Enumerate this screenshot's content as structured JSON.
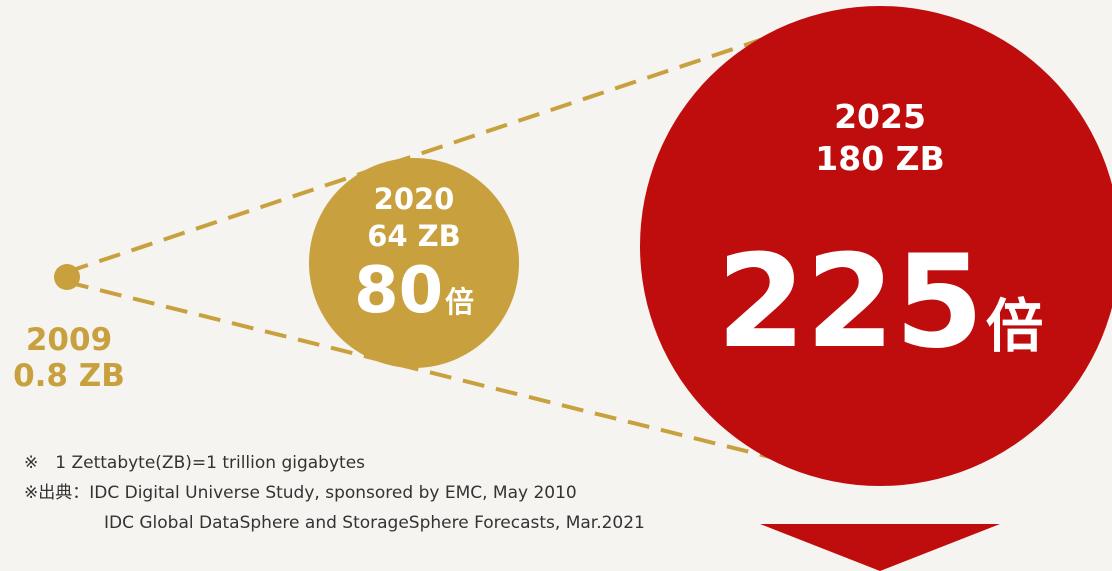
{
  "diagram": {
    "p2009": {
      "year": "2009",
      "size": "0.8 ZB",
      "color": "#c9a03e"
    },
    "p2020": {
      "year": "2020",
      "size": "64 ZB",
      "multiplier": "80",
      "unit": "倍",
      "color": "#c9a03e"
    },
    "p2025": {
      "year": "2025",
      "size": "180 ZB",
      "multiplier": "225",
      "unit": "倍",
      "color": "#bf0d0e"
    }
  },
  "notes": {
    "line1": "※　1 Zettabyte(ZB)=1 trillion gigabytes",
    "line2": "※出典：IDC Digital Universe Study, sponsored by EMC, May 2010",
    "line3": "IDC Global DataSphere and StorageSphere Forecasts, Mar.2021"
  }
}
